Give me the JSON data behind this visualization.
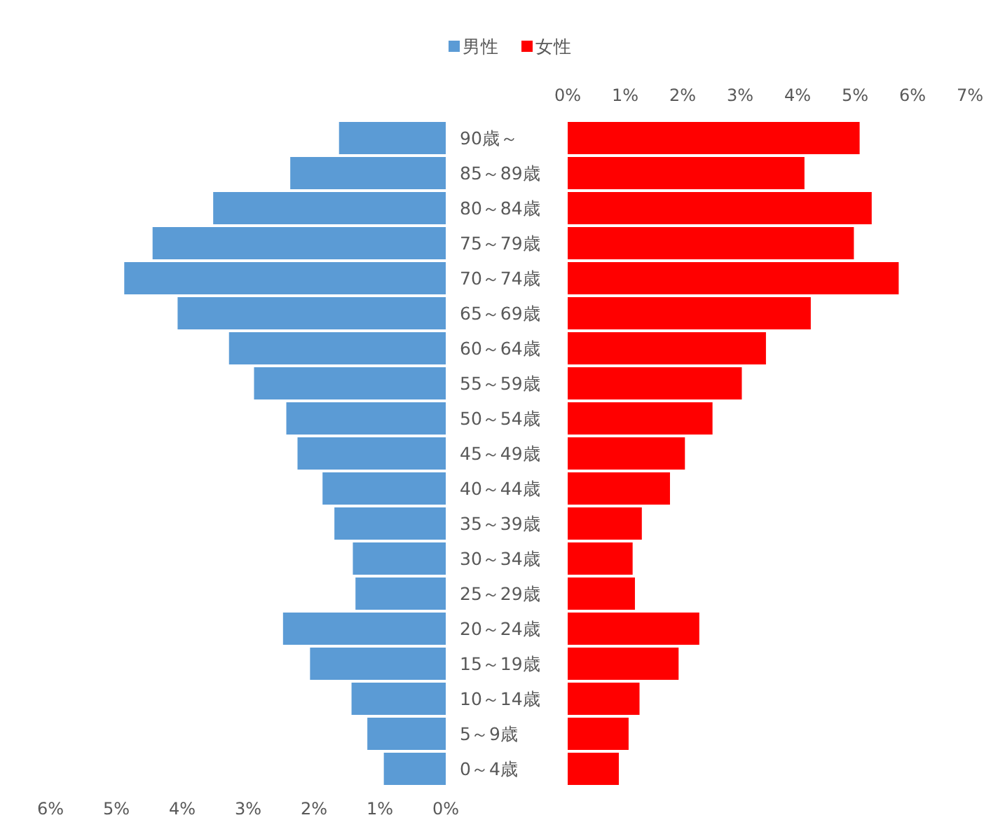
{
  "chart_data": [
    {
      "type": "bar",
      "orientation": "horizontal",
      "categories": [
        "90歳～",
        "85～89歳",
        "80～84歳",
        "75～79歳",
        "70～74歳",
        "65～69歳",
        "60～64歳",
        "55～59歳",
        "50～54歳",
        "45～49歳",
        "40～44歳",
        "35～39歳",
        "30～34歳",
        "25～29歳",
        "20～24歳",
        "15～19歳",
        "10～14歳",
        "5～9歳",
        "0～4歳"
      ],
      "series": [
        {
          "name": "男性",
          "color": "#5b9bd5",
          "values": [
            1.62,
            2.36,
            3.53,
            4.45,
            4.88,
            4.07,
            3.29,
            2.91,
            2.42,
            2.25,
            1.87,
            1.69,
            1.41,
            1.37,
            2.47,
            2.06,
            1.43,
            1.19,
            0.94
          ]
        }
      ],
      "xlim": [
        6,
        0
      ],
      "xticks": [
        {
          "value": 6,
          "label": "6%"
        },
        {
          "value": 5,
          "label": "5%"
        },
        {
          "value": 4,
          "label": "4%"
        },
        {
          "value": 3,
          "label": "3%"
        },
        {
          "value": 2,
          "label": "2%"
        },
        {
          "value": 1,
          "label": "1%"
        },
        {
          "value": 0,
          "label": "0%"
        }
      ],
      "legend": "top",
      "grid": false
    },
    {
      "type": "bar",
      "orientation": "horizontal",
      "categories": [
        null,
        null,
        null,
        null,
        null,
        null,
        null,
        null,
        null,
        null,
        null,
        null,
        null,
        null,
        null,
        null,
        null,
        null,
        null
      ],
      "tick_labels": "x",
      "series": [
        {
          "name": "女性",
          "color": "#ff0000",
          "values": [
            5.08,
            4.12,
            5.29,
            4.98,
            5.76,
            4.23,
            3.45,
            3.03,
            2.52,
            2.04,
            1.78,
            1.29,
            1.13,
            1.17,
            2.29,
            1.93,
            1.25,
            1.06,
            0.89
          ]
        }
      ],
      "xlim": [
        0,
        7
      ],
      "xticks": [
        {
          "value": 0,
          "label": "0%"
        },
        {
          "value": 1,
          "label": "1%"
        },
        {
          "value": 2,
          "label": "2%"
        },
        {
          "value": 3,
          "label": "3%"
        },
        {
          "value": 4,
          "label": "4%"
        },
        {
          "value": 5,
          "label": "5%"
        },
        {
          "value": 6,
          "label": "6%"
        },
        {
          "value": 7,
          "label": "7%"
        }
      ],
      "legend": "top",
      "grid": false
    }
  ]
}
